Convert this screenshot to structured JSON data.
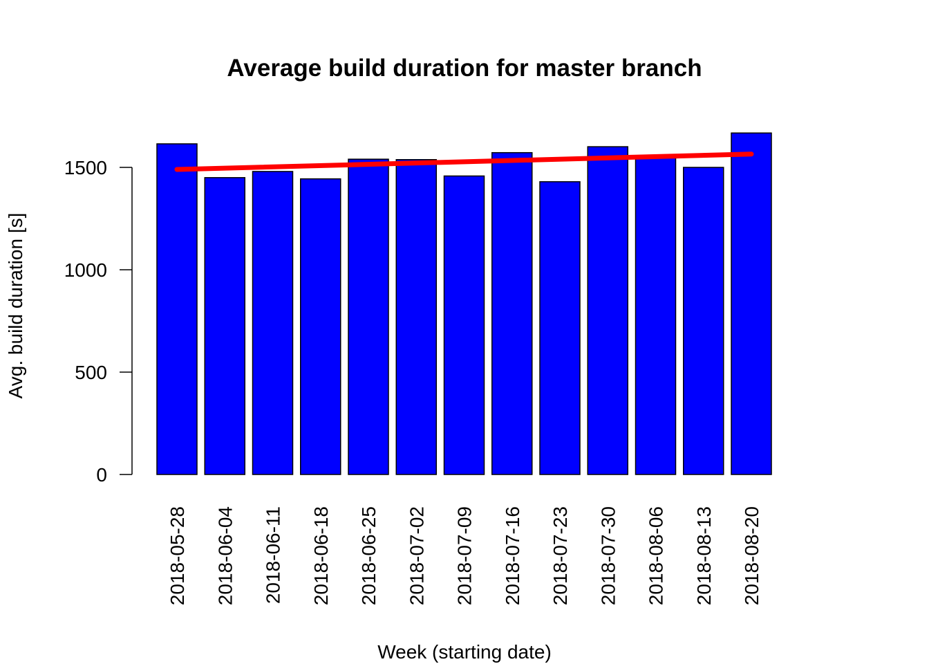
{
  "chart_data": {
    "type": "bar",
    "title": "Average build duration for master branch",
    "xlabel": "Week (starting date)",
    "ylabel": "Avg. build duration [s]",
    "categories": [
      "2018-05-28",
      "2018-06-04",
      "2018-06-11",
      "2018-06-18",
      "2018-06-25",
      "2018-07-02",
      "2018-07-09",
      "2018-07-16",
      "2018-07-23",
      "2018-07-30",
      "2018-08-06",
      "2018-08-13",
      "2018-08-20"
    ],
    "values": [
      1615,
      1450,
      1480,
      1444,
      1540,
      1538,
      1458,
      1572,
      1430,
      1601,
      1556,
      1500,
      1668
    ],
    "ylim": [
      0,
      1700
    ],
    "yticks": [
      0,
      500,
      1000,
      1500
    ],
    "grid": false,
    "colors": {
      "bar": "#0000ff",
      "trend": "#ff0000"
    },
    "trend_line": {
      "start": 1490,
      "end": 1565
    }
  }
}
